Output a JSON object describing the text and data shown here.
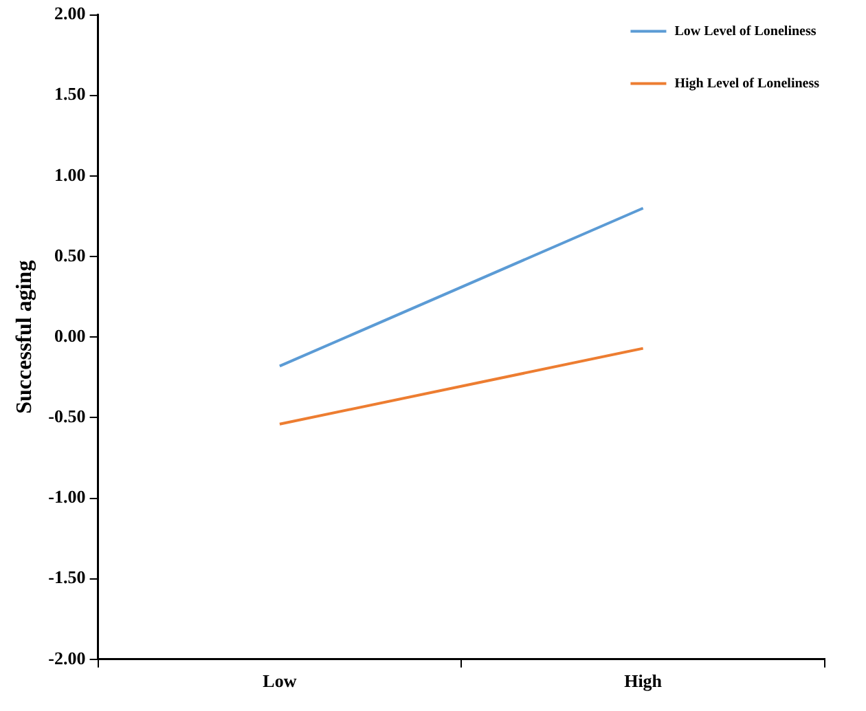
{
  "chart_data": {
    "type": "line",
    "ylabel": "Successful aging",
    "categories": [
      "Low",
      "High"
    ],
    "series": [
      {
        "name": "Low Level of Loneliness",
        "color": "#5b9bd5",
        "values": [
          -0.18,
          0.8
        ]
      },
      {
        "name": "High Level of Loneliness",
        "color": "#ed7d31",
        "values": [
          -0.54,
          -0.07
        ]
      }
    ],
    "ylim": [
      -2,
      2
    ],
    "yticks": [
      {
        "value": -2,
        "label": "-2.00"
      },
      {
        "value": -1.5,
        "label": "-1.50"
      },
      {
        "value": -1,
        "label": "-1.00"
      },
      {
        "value": -0.5,
        "label": "-0.50"
      },
      {
        "value": 0,
        "label": "0.00"
      },
      {
        "value": 0.5,
        "label": "0.50"
      },
      {
        "value": 1,
        "label": "1.00"
      },
      {
        "value": 1.5,
        "label": "1.50"
      },
      {
        "value": 2,
        "label": "2.00"
      }
    ],
    "grid": false,
    "legend": "top right",
    "marker": "none",
    "line_style": "solid"
  }
}
